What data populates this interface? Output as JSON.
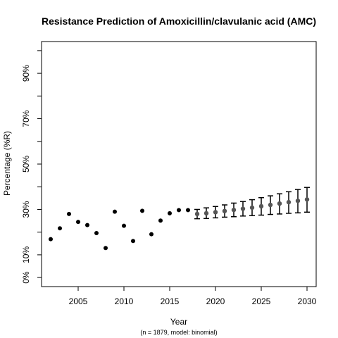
{
  "chart_data": {
    "type": "scatter",
    "title": "Resistance Prediction of Amoxicillin/clavulanic acid (AMC)",
    "xlabel": "Year",
    "ylabel": "Percentage (%R)",
    "subtitle": "(n = 1879, model: binomial)",
    "xlim": [
      2001,
      2031
    ],
    "ylim": [
      -0.04,
      1.04
    ],
    "x_ticks": [
      2005,
      2010,
      2015,
      2020,
      2025,
      2030
    ],
    "x_tick_labels": [
      "2005",
      "2010",
      "2015",
      "2020",
      "2025",
      "2030"
    ],
    "y_ticks": [
      0.0,
      0.1,
      0.2,
      0.3,
      0.4,
      0.5,
      0.6,
      0.7,
      0.8,
      0.9,
      1.0
    ],
    "y_tick_labels": [
      "0%",
      "10%",
      "",
      "30%",
      "",
      "50%",
      "",
      "70%",
      "",
      "90%",
      ""
    ],
    "grid": false,
    "series": [
      {
        "color": "#000000",
        "x": [
          2002,
          2003,
          2004,
          2005,
          2006,
          2007,
          2008,
          2009,
          2010,
          2011,
          2012,
          2013,
          2014,
          2015,
          2016,
          2017
        ],
        "y": [
          0.169,
          0.217,
          0.28,
          0.245,
          0.231,
          0.196,
          0.13,
          0.29,
          0.228,
          0.161,
          0.294,
          0.191,
          0.251,
          0.283,
          0.297,
          0.297
        ]
      },
      {
        "color": "#555555",
        "x": [
          2018,
          2019,
          2020,
          2021,
          2022,
          2023,
          2024,
          2025,
          2026,
          2027,
          2028,
          2029,
          2030
        ],
        "y": [
          0.28,
          0.283,
          0.288,
          0.293,
          0.298,
          0.303,
          0.308,
          0.314,
          0.32,
          0.326,
          0.332,
          0.338,
          0.344
        ],
        "lower": [
          0.259,
          0.26,
          0.263,
          0.266,
          0.268,
          0.271,
          0.273,
          0.275,
          0.278,
          0.28,
          0.283,
          0.285,
          0.288
        ],
        "upper": [
          0.3,
          0.307,
          0.313,
          0.32,
          0.328,
          0.335,
          0.343,
          0.352,
          0.36,
          0.369,
          0.378,
          0.388,
          0.397
        ]
      }
    ]
  }
}
